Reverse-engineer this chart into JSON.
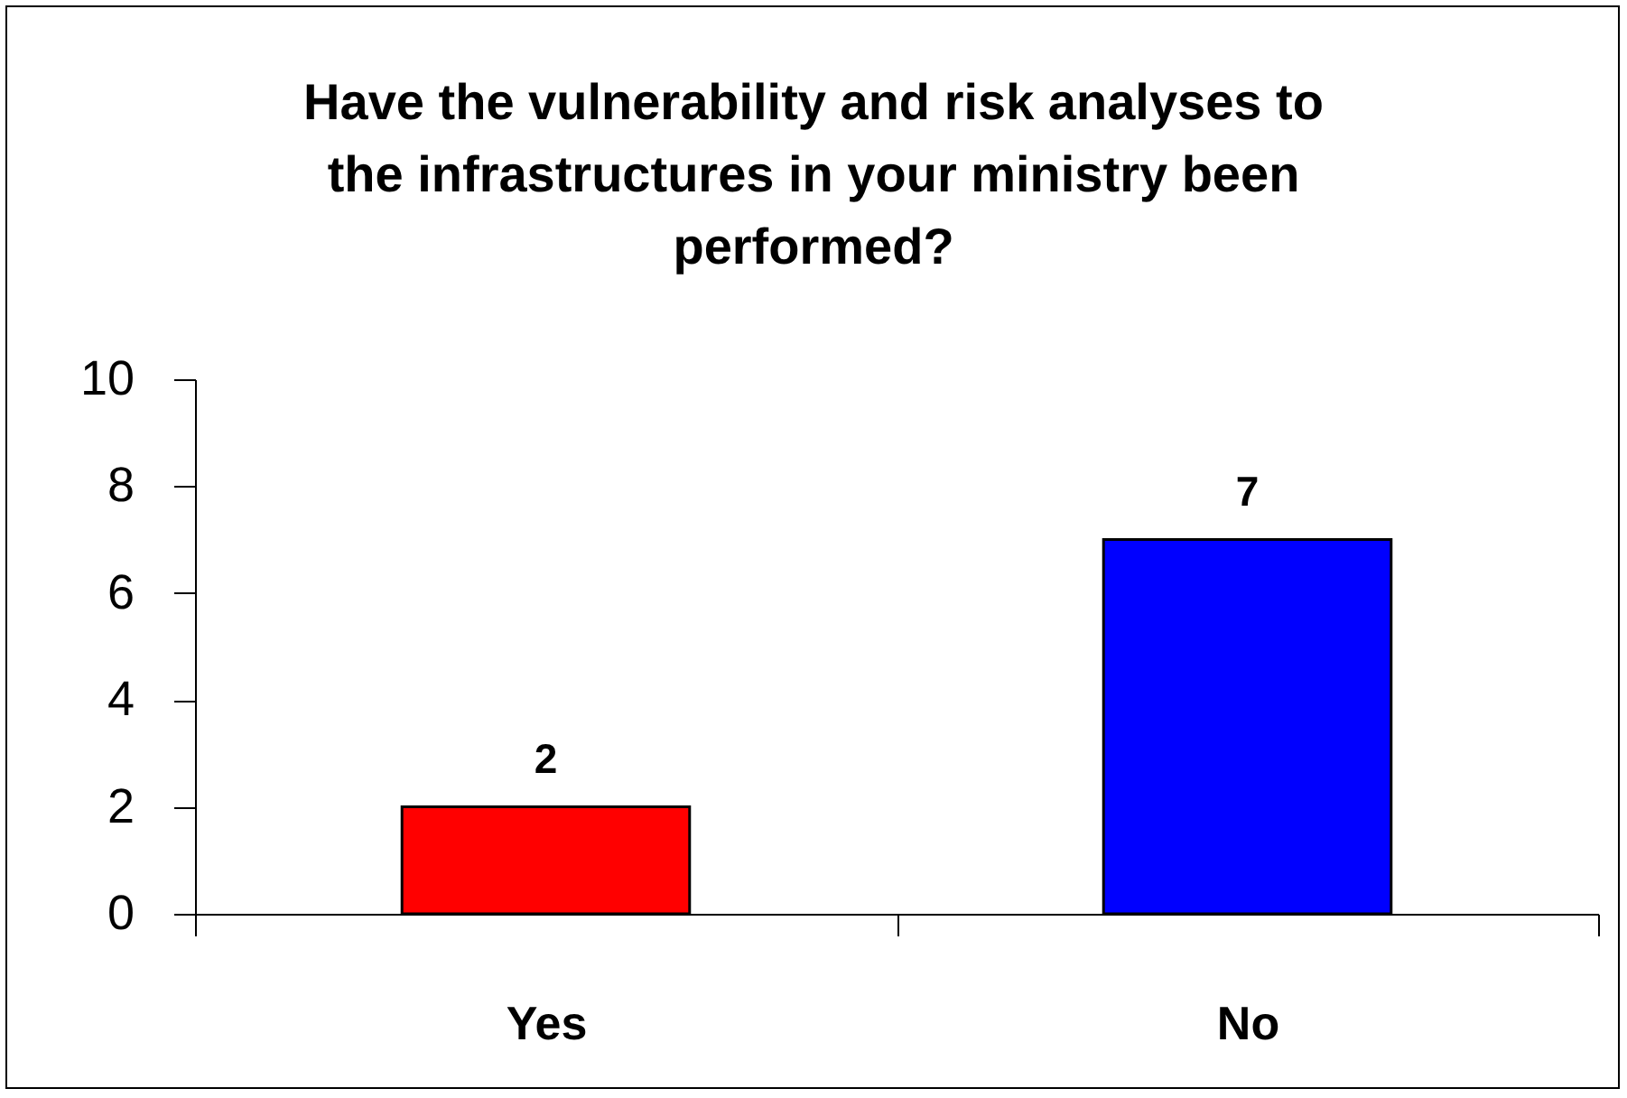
{
  "chart_data": {
    "type": "bar",
    "title": "Have the vulnerability and risk analyses to the infrastructures in your ministry been performed?",
    "categories": [
      "Yes",
      "No"
    ],
    "values": [
      2,
      7
    ],
    "colors": [
      "#ff0000",
      "#0000ff"
    ],
    "ylim": [
      0,
      10
    ],
    "yticks": [
      0,
      2,
      4,
      6,
      8,
      10
    ],
    "data_labels": true
  }
}
